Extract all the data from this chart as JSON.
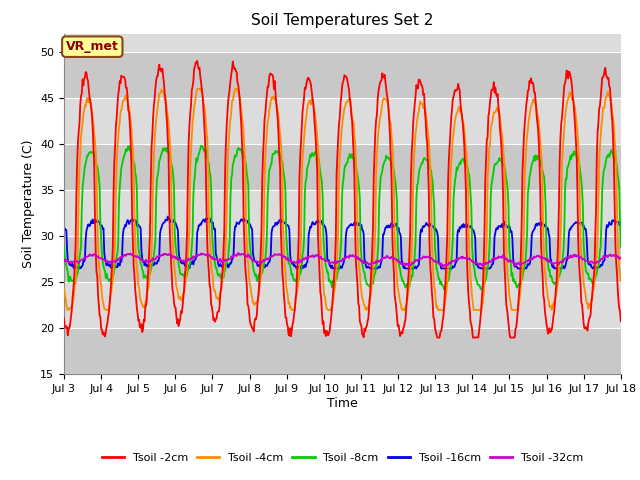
{
  "title": "Soil Temperatures Set 2",
  "xlabel": "Time",
  "ylabel": "Soil Temperature (C)",
  "ylim": [
    15,
    52
  ],
  "yticks": [
    15,
    20,
    25,
    30,
    35,
    40,
    45,
    50
  ],
  "xlim": [
    3,
    18
  ],
  "x_tick_labels": [
    "Jul 3",
    "Jul 4",
    "Jul 5",
    "Jul 6",
    "Jul 7",
    "Jul 8",
    "Jul 9",
    "Jul 10",
    "Jul 11",
    "Jul 12",
    "Jul 13",
    "Jul 14",
    "Jul 15",
    "Jul 16",
    "Jul 17",
    "Jul 18"
  ],
  "colors": {
    "Tsoil -2cm": "#FF0000",
    "Tsoil -4cm": "#FF8C00",
    "Tsoil -8cm": "#00CC00",
    "Tsoil -16cm": "#0000EE",
    "Tsoil -32cm": "#CC00CC"
  },
  "bg_color": "#DCDCDC",
  "bg_color2": "#C8C8C8",
  "fig_bg": "#FFFFFF",
  "annotation_text": "VR_met",
  "annotation_box_color": "#FFFF99",
  "annotation_box_edge": "#8B4513",
  "grid_color": "#FFFFFF"
}
